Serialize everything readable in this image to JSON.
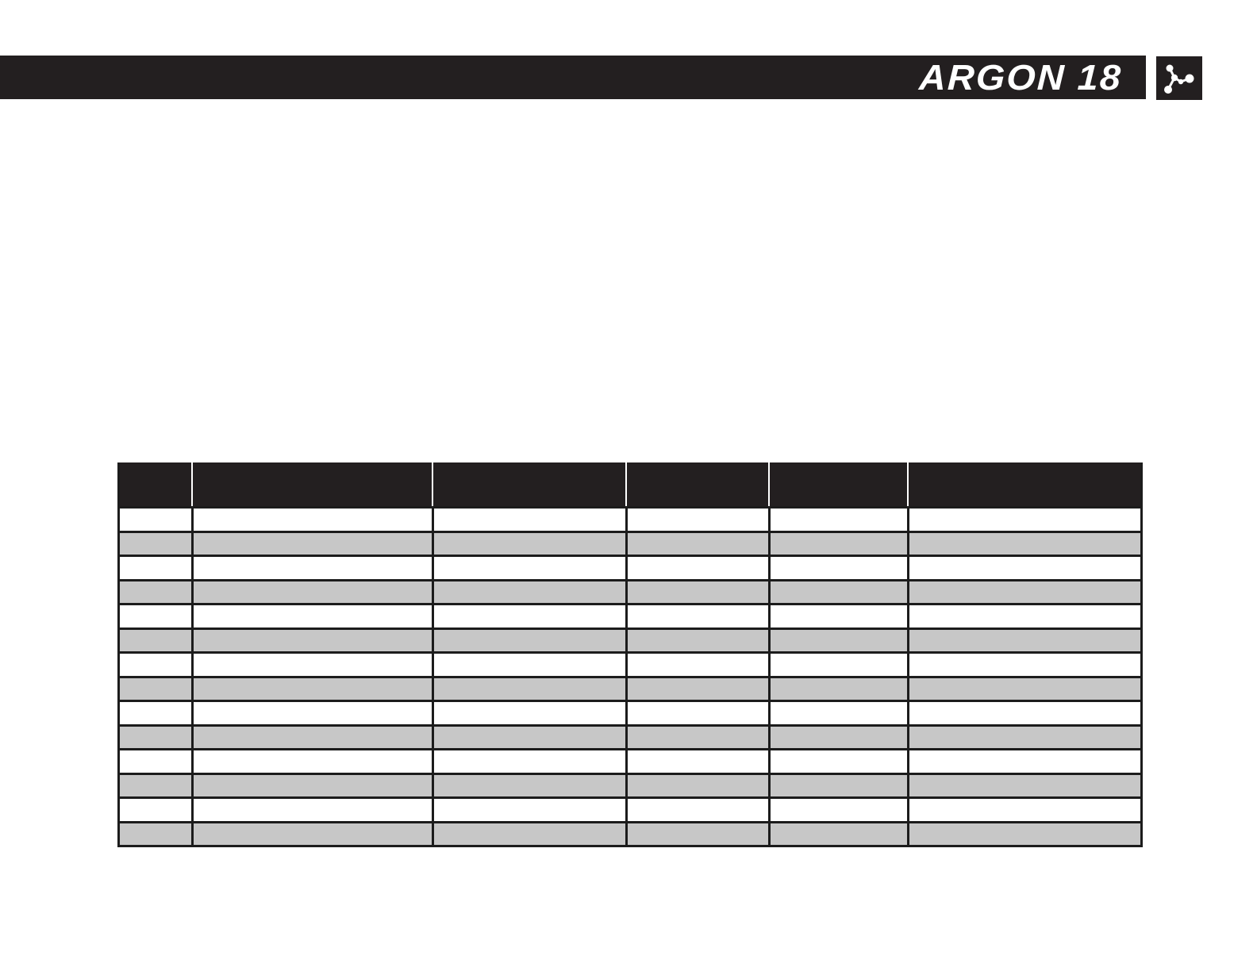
{
  "header": {
    "brand": "ARGON 18",
    "bar_color": "#231f20",
    "text_color": "#ffffff",
    "logo_icon": "argon-molecule-icon"
  },
  "table": {
    "header_bg": "#231f20",
    "row_bg": "#ffffff",
    "alt_row_bg": "#c7c7c7",
    "border_color": "#1c1c1c",
    "columns": [
      "",
      "",
      "",
      "",
      "",
      ""
    ],
    "rows": [
      [
        "",
        "",
        "",
        "",
        "",
        ""
      ],
      [
        "",
        "",
        "",
        "",
        "",
        ""
      ],
      [
        "",
        "",
        "",
        "",
        "",
        ""
      ],
      [
        "",
        "",
        "",
        "",
        "",
        ""
      ],
      [
        "",
        "",
        "",
        "",
        "",
        ""
      ],
      [
        "",
        "",
        "",
        "",
        "",
        ""
      ],
      [
        "",
        "",
        "",
        "",
        "",
        ""
      ],
      [
        "",
        "",
        "",
        "",
        "",
        ""
      ],
      [
        "",
        "",
        "",
        "",
        "",
        ""
      ],
      [
        "",
        "",
        "",
        "",
        "",
        ""
      ],
      [
        "",
        "",
        "",
        "",
        "",
        ""
      ],
      [
        "",
        "",
        "",
        "",
        "",
        ""
      ],
      [
        "",
        "",
        "",
        "",
        "",
        ""
      ],
      [
        "",
        "",
        "",
        "",
        "",
        ""
      ]
    ]
  }
}
